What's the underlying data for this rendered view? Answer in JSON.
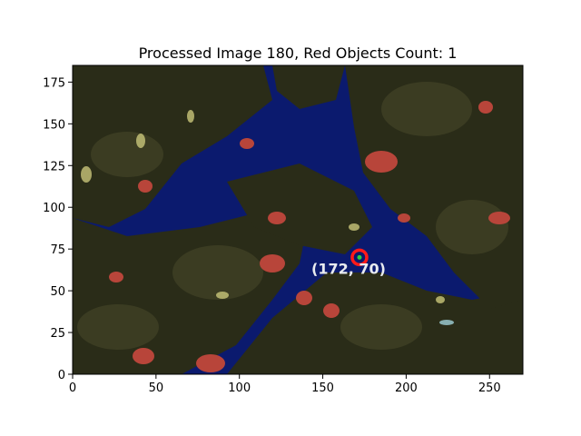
{
  "figure": {
    "title": "Processed Image 180, Red Objects Count: 1"
  },
  "image": {
    "x_range": [
      0,
      270
    ],
    "y_range": [
      0,
      185
    ],
    "x_ticks": [
      0,
      50,
      100,
      150,
      200,
      250
    ],
    "y_ticks": [
      0,
      25,
      50,
      75,
      100,
      125,
      150,
      175
    ],
    "x_tick_labels": [
      "0",
      "50",
      "100",
      "150",
      "200",
      "250"
    ],
    "y_tick_labels": [
      "0",
      "25",
      "50",
      "75",
      "100",
      "125",
      "150",
      "175"
    ],
    "detection": {
      "x": 172,
      "y": 70,
      "label": "(172, 70)",
      "ring_color": "#ff1a1a",
      "center_color": "#2bd33a"
    },
    "colors": {
      "sky": "#0b1a6e",
      "foliage": "#2a2c18",
      "foliage_light": "#3b3c22",
      "fruit": "#b8453a"
    }
  }
}
